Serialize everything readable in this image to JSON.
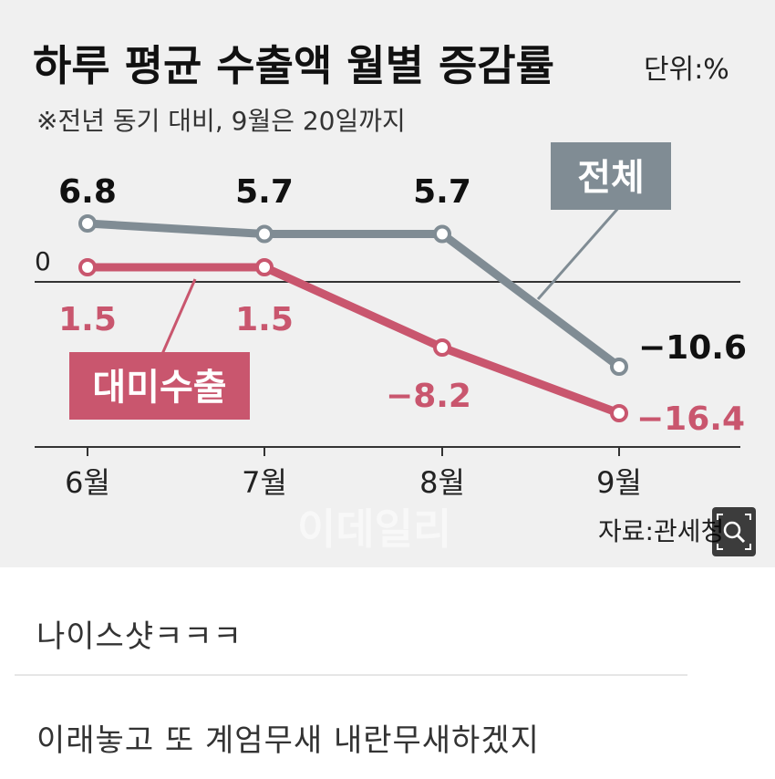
{
  "chart_data": {
    "type": "line",
    "title": "하루 평균 수출액 월별 증감률",
    "unit": "단위:%",
    "subtitle": "※전년 동기 대비, 9월은 20일까지",
    "categories": [
      "6월",
      "7월",
      "8월",
      "9월"
    ],
    "series": [
      {
        "name": "전체",
        "values": [
          6.8,
          5.7,
          5.7,
          -10.6
        ],
        "labels": [
          "6.8",
          "5.7",
          "5.7",
          "−10.6"
        ],
        "color": "#808c94"
      },
      {
        "name": "대미수출",
        "values": [
          1.5,
          1.5,
          -8.2,
          -16.4
        ],
        "labels": [
          "1.5",
          "1.5",
          "−8.2",
          "−16.4"
        ],
        "color": "#c9566e"
      }
    ],
    "zero_label": "0",
    "source": "자료:관세청",
    "watermark": "이데일리",
    "grid": false,
    "legend": "inline"
  },
  "comments": [
    "나이스샷ㅋㅋㅋ",
    "이래놓고 또 계엄무새 내란무새하겠지"
  ],
  "icons": {
    "zoom": "magnifier-icon"
  }
}
